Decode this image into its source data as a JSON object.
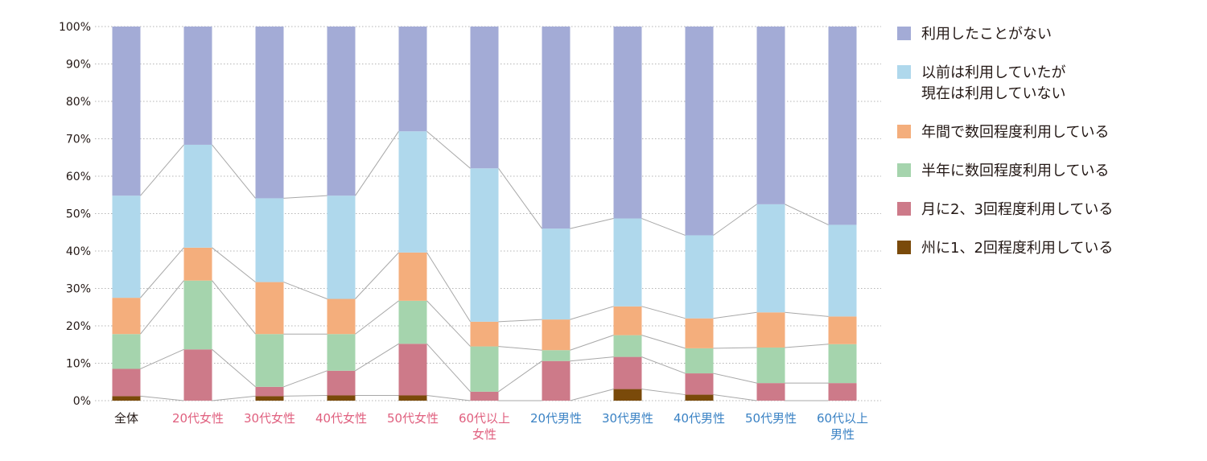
{
  "chart_data": {
    "type": "bar",
    "stacked": true,
    "ylim": [
      0,
      100
    ],
    "yticks": [
      "0%",
      "10%",
      "20%",
      "30%",
      "40%",
      "50%",
      "60%",
      "70%",
      "80%",
      "90%",
      "100%"
    ],
    "grid": true,
    "legend_position": "right",
    "categories": [
      "全体",
      "20代女性",
      "30代女性",
      "40代女性",
      "50代女性",
      "60代以上\n女性",
      "20代男性",
      "30代男性",
      "40代男性",
      "50代男性",
      "60代以上\n男性"
    ],
    "category_colors": [
      "#231815",
      "#e0607f",
      "#e0607f",
      "#e0607f",
      "#e0607f",
      "#e0607f",
      "#3a82c4",
      "#3a82c4",
      "#3a82c4",
      "#3a82c4",
      "#3a82c4"
    ],
    "series": [
      {
        "name": "州に1、2回程度利用している",
        "color": "#7a4a0a",
        "values": [
          1.2,
          0,
          1.2,
          1.4,
          1.4,
          0,
          0,
          3.1,
          1.6,
          0,
          0
        ]
      },
      {
        "name": "月に2、3回程度利用している",
        "color": "#cd7a89",
        "values": [
          7.3,
          13.7,
          2.5,
          6.6,
          13.8,
          2.4,
          10.6,
          8.6,
          5.7,
          4.7,
          4.7
        ]
      },
      {
        "name": "半年に数回程度利用している",
        "color": "#a5d4ad",
        "values": [
          9.3,
          18.4,
          14.1,
          9.8,
          11.5,
          12.1,
          2.9,
          5.8,
          6.7,
          9.5,
          10.4
        ]
      },
      {
        "name": "年間で数回程度利用している",
        "color": "#f4ae7c",
        "values": [
          9.7,
          8.8,
          13.9,
          9.4,
          12.9,
          6.6,
          8.2,
          7.7,
          8.0,
          9.4,
          7.4
        ]
      },
      {
        "name": "以前は利用していたが\n現在は利用していない",
        "color": "#afd8ec",
        "values": [
          27.3,
          27.5,
          22.4,
          27.6,
          32.4,
          41.0,
          24.3,
          23.5,
          22.2,
          28.9,
          24.5
        ]
      },
      {
        "name": "利用したことがない",
        "color": "#a3abd6",
        "values": [
          45.2,
          31.6,
          45.9,
          45.2,
          28.0,
          37.9,
          54.0,
          51.3,
          55.8,
          47.5,
          53.0
        ]
      }
    ]
  }
}
